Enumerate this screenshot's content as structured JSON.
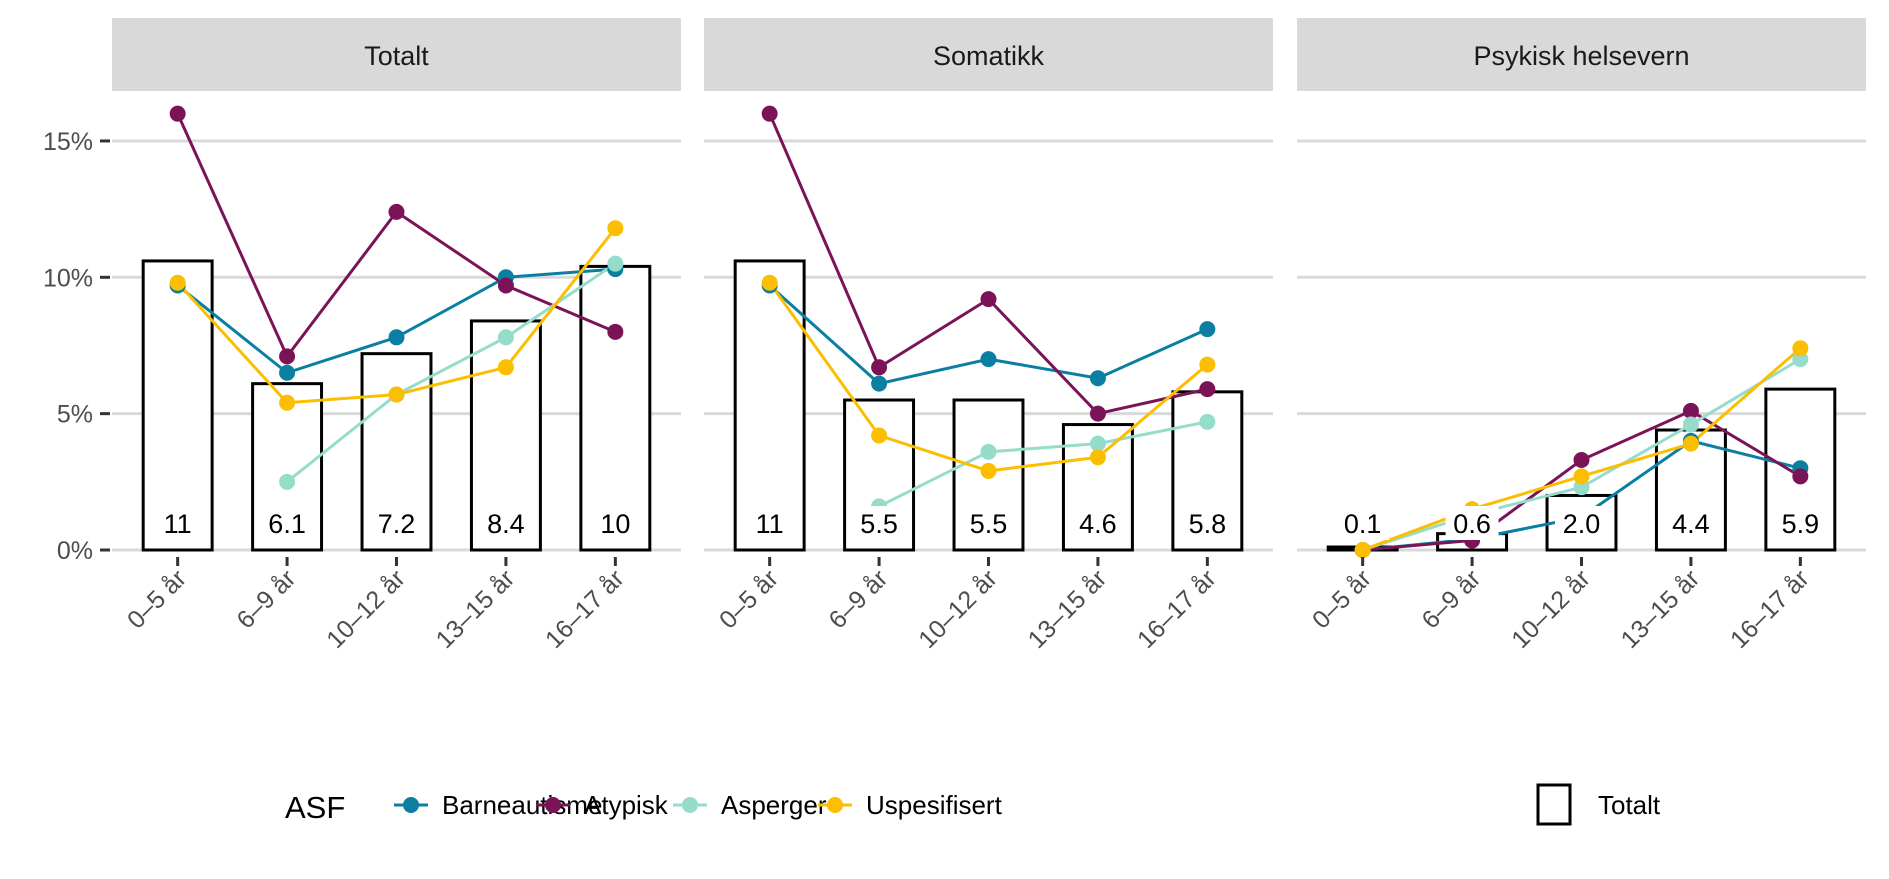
{
  "chart_data": {
    "type": "bar+line",
    "categories": [
      "0–5 år",
      "6–9 år",
      "10–12 år",
      "13–15 år",
      "16–17 år"
    ],
    "y_ticks": [
      "0%",
      "5%",
      "10%",
      "15%"
    ],
    "ylim": [
      0,
      16.5
    ],
    "grid": "horizontal major",
    "legend_position": "bottom",
    "legend": {
      "title": "ASF",
      "series_labels": [
        "Barneautisme",
        "Atypisk",
        "Asperger",
        "Uspesifisert"
      ],
      "bar_label": "Totalt"
    },
    "colors": {
      "Barneautisme": "#0a7fa2",
      "Atypisk": "#7a1457",
      "Asperger": "#96dcca",
      "Uspesifisert": "#fbbe00",
      "strip": "#d9d9d9",
      "grid": "#d9d9d9"
    },
    "panels": [
      {
        "title": "Totalt",
        "bars": [
          10.6,
          6.1,
          7.2,
          8.4,
          10.4
        ],
        "bar_labels": [
          "11",
          "6.1",
          "7.2",
          "8.4",
          "10"
        ],
        "series": [
          {
            "name": "Barneautisme",
            "values": [
              9.7,
              6.5,
              7.8,
              10.0,
              10.3
            ]
          },
          {
            "name": "Atypisk",
            "values": [
              16.0,
              7.1,
              12.4,
              9.7,
              8.0
            ]
          },
          {
            "name": "Asperger",
            "values": [
              null,
              2.5,
              5.7,
              7.8,
              10.5
            ]
          },
          {
            "name": "Uspesifisert",
            "values": [
              9.8,
              5.4,
              5.7,
              6.7,
              11.8
            ]
          }
        ]
      },
      {
        "title": "Somatikk",
        "bars": [
          10.6,
          5.5,
          5.5,
          4.6,
          5.8
        ],
        "bar_labels": [
          "11",
          "5.5",
          "5.5",
          "4.6",
          "5.8"
        ],
        "series": [
          {
            "name": "Barneautisme",
            "values": [
              9.7,
              6.1,
              7.0,
              6.3,
              8.1
            ]
          },
          {
            "name": "Atypisk",
            "values": [
              16.0,
              6.7,
              9.2,
              5.0,
              5.9
            ]
          },
          {
            "name": "Asperger",
            "values": [
              null,
              1.6,
              3.6,
              3.9,
              4.7
            ]
          },
          {
            "name": "Uspesifisert",
            "values": [
              9.8,
              4.2,
              2.9,
              3.4,
              6.8
            ]
          }
        ]
      },
      {
        "title": "Psykisk helsevern",
        "bars": [
          0.1,
          0.6,
          2.0,
          4.4,
          5.9
        ],
        "bar_labels": [
          "0.1",
          "0.6",
          "2.0",
          "4.4",
          "5.9"
        ],
        "series": [
          {
            "name": "Barneautisme",
            "values": [
              0.0,
              0.4,
              1.2,
              4.0,
              3.0
            ]
          },
          {
            "name": "Atypisk",
            "values": [
              0.0,
              0.35,
              3.3,
              5.1,
              2.7
            ]
          },
          {
            "name": "Asperger",
            "values": [
              0.0,
              1.3,
              2.3,
              4.6,
              7.0
            ]
          },
          {
            "name": "Uspesifisert",
            "values": [
              0.0,
              1.5,
              2.7,
              3.9,
              7.4
            ]
          }
        ]
      }
    ]
  }
}
